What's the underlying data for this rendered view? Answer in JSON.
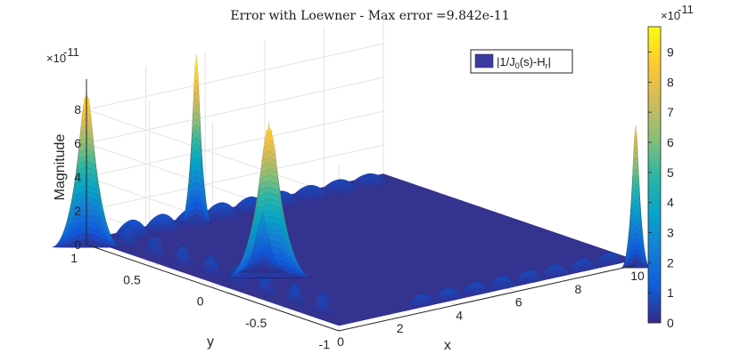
{
  "chart_data": {
    "type": "surface",
    "title": "Error with Loewner - Max error =9.842e-11",
    "xlabel": "x",
    "ylabel": "y",
    "zlabel": "Magnitude",
    "x_ticks": [
      "0",
      "2",
      "4",
      "6",
      "8",
      "10"
    ],
    "y_ticks": [
      "1",
      "0.5",
      "0",
      "-0.5",
      "-1"
    ],
    "z_ticks": [
      "0",
      "2",
      "4",
      "6",
      "8"
    ],
    "z_exponent": "×10",
    "z_exponent_power": "-11",
    "xlim": [
      0,
      10
    ],
    "ylim": [
      -1,
      1
    ],
    "zlim": [
      0,
      9.8e-11
    ],
    "grid": true,
    "legend": {
      "placement": "top-right",
      "entry_prefix": "|1/J",
      "entry_sub1": "0",
      "entry_mid": "(s)-H",
      "entry_sub2": "r",
      "entry_suffix": "|",
      "swatch_color": "#3a3aa0"
    },
    "colorbar": {
      "ticks": [
        "0",
        "1",
        "2",
        "3",
        "4",
        "5",
        "6",
        "7",
        "8",
        "9"
      ],
      "exponent": "×10",
      "exponent_power": "-11",
      "colormap": "parula",
      "range": [
        0,
        9.842e-11
      ]
    },
    "max_error": 9.842e-11,
    "peaks": [
      {
        "x": 0,
        "y": 1,
        "z": 9.2e-11
      },
      {
        "x": 1.9,
        "y": 0,
        "z": 9.1e-11
      },
      {
        "x": 3.7,
        "y": 1,
        "z": 9.842e-11
      },
      {
        "x": 10,
        "y": -1,
        "z": 8.3e-11
      },
      {
        "x": 2.1,
        "y": 0.1,
        "z": 3.4e-11
      }
    ]
  }
}
